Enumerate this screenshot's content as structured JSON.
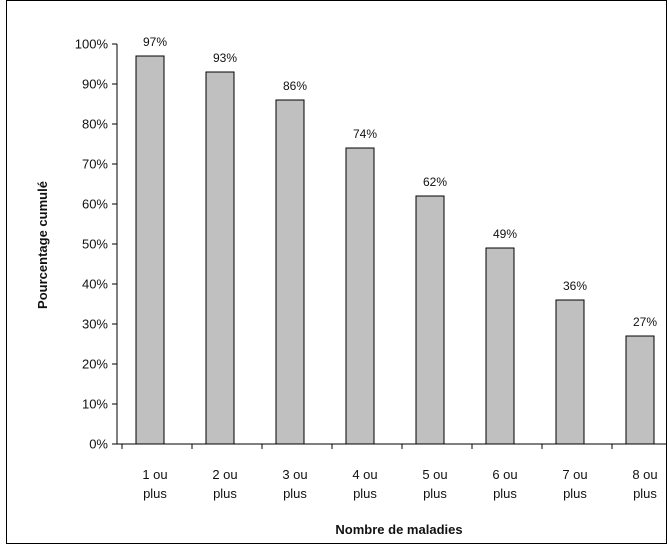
{
  "chart_data": {
    "type": "bar",
    "title": "",
    "xlabel": "Nombre de maladies",
    "ylabel": "Pourcentage cumulé",
    "categories": [
      [
        "1 ou",
        "plus"
      ],
      [
        "2 ou",
        "plus"
      ],
      [
        "3 ou",
        "plus"
      ],
      [
        "4 ou",
        "plus"
      ],
      [
        "5 ou",
        "plus"
      ],
      [
        "6 ou",
        "plus"
      ],
      [
        "7 ou",
        "plus"
      ],
      [
        "8 ou",
        "plus"
      ]
    ],
    "values": [
      97,
      93,
      86,
      74,
      62,
      49,
      36,
      27
    ],
    "data_labels": [
      "97%",
      "93%",
      "86%",
      "74%",
      "62%",
      "49%",
      "36%",
      "27%"
    ],
    "yticks": [
      "0%",
      "10%",
      "20%",
      "30%",
      "40%",
      "50%",
      "60%",
      "70%",
      "80%",
      "90%",
      "100%"
    ],
    "ylim": [
      0,
      100
    ],
    "grid": false,
    "legend": "none",
    "colors": {
      "bar_fill": "#c0c0c0",
      "bar_stroke": "#000000",
      "axis": "#000000",
      "frame": "#000000"
    }
  }
}
